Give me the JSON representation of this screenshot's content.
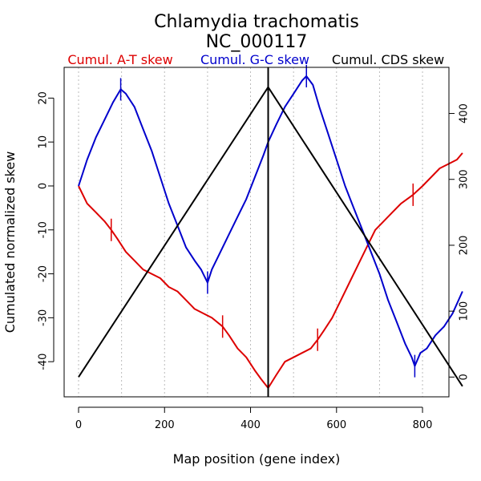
{
  "chart_data": {
    "type": "line",
    "title": "Chlamydia trachomatis",
    "subtitle": "NC_000117",
    "xlabel": "Map position (gene index)",
    "ylabel": "Cumulated normalized skew",
    "xlim": [
      0,
      895
    ],
    "ylim_left": [
      -48,
      27
    ],
    "ylim_right": [
      -30,
      470
    ],
    "x_ticks": [
      0,
      200,
      400,
      600,
      800
    ],
    "y_ticks_left": [
      -40,
      -30,
      -20,
      -10,
      0,
      10,
      20
    ],
    "y_ticks_right": [
      0,
      100,
      200,
      300,
      400
    ],
    "grid_x": [
      0,
      100,
      200,
      300,
      400,
      500,
      600,
      700,
      800,
      900
    ],
    "vertical_marker_x": 441,
    "legend": [
      {
        "label": "Cumul. A-T skew",
        "color": "#dd0000"
      },
      {
        "label": "Cumul. G-C skew",
        "color": "#0000cc"
      },
      {
        "label": "Cumul. CDS skew",
        "color": "#000000"
      }
    ],
    "series": [
      {
        "name": "Cumul. A-T skew",
        "axis": "left",
        "color": "#dd0000",
        "x": [
          0,
          20,
          40,
          60,
          76,
          90,
          110,
          130,
          150,
          170,
          190,
          210,
          230,
          250,
          270,
          290,
          310,
          335,
          350,
          370,
          390,
          410,
          425,
          441,
          460,
          480,
          500,
          520,
          540,
          556,
          570,
          590,
          610,
          630,
          650,
          670,
          690,
          710,
          730,
          750,
          778,
          800,
          820,
          840,
          860,
          880,
          893
        ],
        "values": [
          0,
          -4,
          -6,
          -8,
          -10,
          -12,
          -15,
          -17,
          -19,
          -20,
          -21,
          -23,
          -24,
          -26,
          -28,
          -29,
          -30,
          -32,
          -34,
          -37,
          -39,
          -42,
          -44,
          -46,
          -43,
          -40,
          -39,
          -38,
          -37,
          -35,
          -33,
          -30,
          -26,
          -22,
          -18,
          -14,
          -10,
          -8,
          -6,
          -4,
          -2,
          0,
          2,
          4,
          5,
          6,
          7.5
        ],
        "ticks_x": [
          76,
          335,
          556,
          778
        ]
      },
      {
        "name": "Cumul. G-C skew",
        "axis": "left",
        "color": "#0000cc",
        "x": [
          0,
          10,
          20,
          40,
          60,
          80,
          98,
          110,
          130,
          150,
          170,
          190,
          210,
          230,
          250,
          270,
          285,
          300,
          310,
          330,
          350,
          370,
          390,
          410,
          430,
          441,
          460,
          480,
          500,
          520,
          530,
          545,
          560,
          580,
          600,
          620,
          640,
          660,
          680,
          700,
          720,
          740,
          760,
          775,
          782,
          795,
          810,
          830,
          850,
          870,
          893
        ],
        "values": [
          0,
          3,
          6,
          11,
          15,
          19,
          22,
          21,
          18,
          13,
          8,
          2,
          -4,
          -9,
          -14,
          -17,
          -19,
          -22,
          -19,
          -15,
          -11,
          -7,
          -3,
          2,
          7,
          10,
          14,
          18,
          21,
          24,
          25,
          23,
          18,
          12,
          6,
          0,
          -5,
          -10,
          -15,
          -20,
          -26,
          -31,
          -36,
          -39,
          -41,
          -38,
          -37,
          -34,
          -32,
          -29,
          -24
        ]
      },
      {
        "name": "Cumul. CDS skew",
        "axis": "right",
        "color": "#000000",
        "x": [
          0,
          441,
          893
        ],
        "values": [
          0,
          440,
          -14
        ]
      }
    ]
  }
}
